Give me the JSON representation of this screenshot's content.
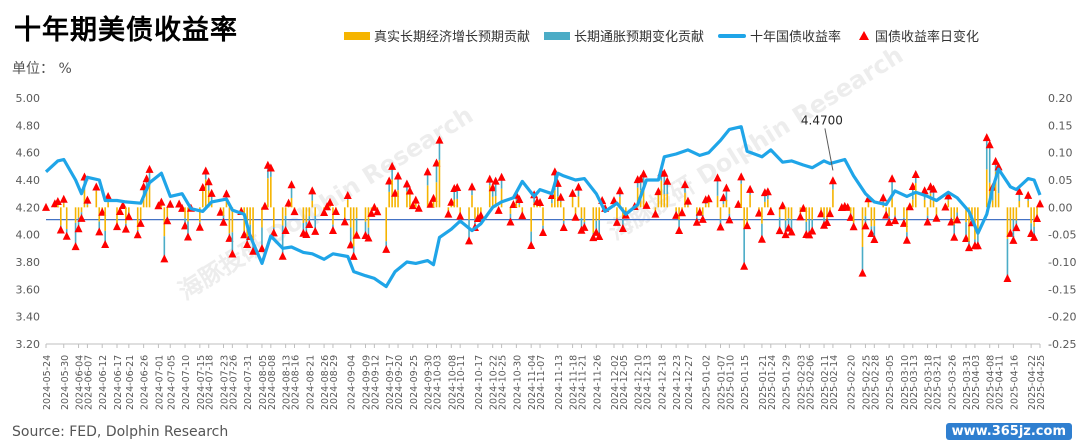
{
  "title": "十年期美债收益率",
  "unit": "单位： %",
  "source": "Source: FED, Dolphin Research",
  "stamp": "www.365jz.com",
  "watermark": "海豚投研 Dolphin Research",
  "colors": {
    "real": "#f5b400",
    "infl": "#4bacc6",
    "line": "#1fa5e8",
    "marker": "#ff0000",
    "ref": "#4472c4",
    "axis": "#595959"
  },
  "legend": {
    "real": "真实长期经济增长预期贡献",
    "infl": "长期通胀预期变化贡献",
    "line": "十年国债收益率",
    "marker": "国债收益率日变化"
  },
  "chart_data": {
    "type": "combo",
    "left_axis": {
      "min": 3.2,
      "max": 5.0,
      "ticks": [
        "3.20",
        "3.40",
        "3.60",
        "3.80",
        "4.00",
        "4.20",
        "4.40",
        "4.60",
        "4.80",
        "5.00"
      ]
    },
    "right_axis": {
      "min": -0.25,
      "max": 0.2,
      "ticks": [
        "-0.25",
        "-0.20",
        "-0.15",
        "-0.10",
        "-0.05",
        "0.00",
        "0.05",
        "0.10",
        "0.15",
        "0.20"
      ]
    },
    "x_ticks": [
      "2024-05-24",
      "2024-05-30",
      "2024-06-04",
      "2024-06-07",
      "2024-06-12",
      "2024-06-17",
      "2024-06-21",
      "2024-06-26",
      "2024-07-01",
      "2024-07-05",
      "2024-07-10",
      "2024-07-15",
      "2024-07-18",
      "2024-07-23",
      "2024-07-26",
      "2024-07-31",
      "2024-08-05",
      "2024-08-08",
      "2024-08-13",
      "2024-08-16",
      "2024-08-21",
      "2024-08-26",
      "2024-08-29",
      "2024-09-04",
      "2024-09-09",
      "2024-09-12",
      "2024-09-17",
      "2024-09-20",
      "2024-09-25",
      "2024-09-30",
      "2024-10-03",
      "2024-10-08",
      "2024-10-11",
      "2024-10-17",
      "2024-10-22",
      "2024-10-25",
      "2024-10-30",
      "2024-11-04",
      "2024-11-07",
      "2024-11-13",
      "2024-11-18",
      "2024-11-21",
      "2024-11-26",
      "2024-12-02",
      "2024-12-05",
      "2024-12-10",
      "2024-12-13",
      "2024-12-18",
      "2024-12-23",
      "2024-12-27",
      "2025-01-02",
      "2025-01-07",
      "2025-01-10",
      "2025-01-15",
      "2025-01-21",
      "2025-01-24",
      "2025-01-29",
      "2025-02-03",
      "2025-02-06",
      "2025-02-11",
      "2025-02-14",
      "2025-02-20",
      "2025-02-25",
      "2025-02-28",
      "2025-03-05",
      "2025-03-10",
      "2025-03-13",
      "2025-03-18",
      "2025-03-21",
      "2025-03-26",
      "2025-03-31",
      "2025-04-03",
      "2025-04-08",
      "2025-04-11",
      "2025-04-16",
      "2025-04-22",
      "2025-04-25"
    ],
    "annotation": {
      "label": "4.4700",
      "x": "2025-02-14",
      "y": 4.47
    },
    "yield_series": [
      [
        "2024-05-24",
        4.46
      ],
      [
        "2024-05-28",
        4.54
      ],
      [
        "2024-05-30",
        4.55
      ],
      [
        "2024-06-03",
        4.4
      ],
      [
        "2024-06-05",
        4.3
      ],
      [
        "2024-06-07",
        4.42
      ],
      [
        "2024-06-11",
        4.4
      ],
      [
        "2024-06-13",
        4.25
      ],
      [
        "2024-06-17",
        4.25
      ],
      [
        "2024-06-20",
        4.24
      ],
      [
        "2024-06-25",
        4.23
      ],
      [
        "2024-06-28",
        4.38
      ],
      [
        "2024-07-02",
        4.45
      ],
      [
        "2024-07-05",
        4.28
      ],
      [
        "2024-07-09",
        4.3
      ],
      [
        "2024-07-12",
        4.19
      ],
      [
        "2024-07-16",
        4.17
      ],
      [
        "2024-07-19",
        4.24
      ],
      [
        "2024-07-24",
        4.26
      ],
      [
        "2024-07-26",
        4.18
      ],
      [
        "2024-07-30",
        4.15
      ],
      [
        "2024-08-01",
        3.99
      ],
      [
        "2024-08-05",
        3.79
      ],
      [
        "2024-08-08",
        3.99
      ],
      [
        "2024-08-12",
        3.9
      ],
      [
        "2024-08-15",
        3.91
      ],
      [
        "2024-08-19",
        3.87
      ],
      [
        "2024-08-22",
        3.86
      ],
      [
        "2024-08-26",
        3.82
      ],
      [
        "2024-08-29",
        3.86
      ],
      [
        "2024-09-03",
        3.84
      ],
      [
        "2024-09-05",
        3.73
      ],
      [
        "2024-09-09",
        3.7
      ],
      [
        "2024-09-12",
        3.68
      ],
      [
        "2024-09-16",
        3.62
      ],
      [
        "2024-09-19",
        3.73
      ],
      [
        "2024-09-23",
        3.8
      ],
      [
        "2024-09-26",
        3.79
      ],
      [
        "2024-09-30",
        3.81
      ],
      [
        "2024-10-02",
        3.78
      ],
      [
        "2024-10-04",
        3.98
      ],
      [
        "2024-10-08",
        4.04
      ],
      [
        "2024-10-11",
        4.1
      ],
      [
        "2024-10-15",
        4.03
      ],
      [
        "2024-10-18",
        4.08
      ],
      [
        "2024-10-22",
        4.2
      ],
      [
        "2024-10-25",
        4.24
      ],
      [
        "2024-10-29",
        4.27
      ],
      [
        "2024-11-01",
        4.39
      ],
      [
        "2024-11-05",
        4.28
      ],
      [
        "2024-11-07",
        4.33
      ],
      [
        "2024-11-11",
        4.3
      ],
      [
        "2024-11-13",
        4.45
      ],
      [
        "2024-11-15",
        4.43
      ],
      [
        "2024-11-19",
        4.4
      ],
      [
        "2024-11-22",
        4.41
      ],
      [
        "2024-11-26",
        4.3
      ],
      [
        "2024-11-29",
        4.17
      ],
      [
        "2024-12-03",
        4.23
      ],
      [
        "2024-12-06",
        4.15
      ],
      [
        "2024-12-10",
        4.22
      ],
      [
        "2024-12-13",
        4.4
      ],
      [
        "2024-12-17",
        4.4
      ],
      [
        "2024-12-19",
        4.57
      ],
      [
        "2024-12-23",
        4.59
      ],
      [
        "2024-12-27",
        4.62
      ],
      [
        "2024-12-31",
        4.58
      ],
      [
        "2025-01-03",
        4.6
      ],
      [
        "2025-01-07",
        4.69
      ],
      [
        "2025-01-10",
        4.77
      ],
      [
        "2025-01-14",
        4.79
      ],
      [
        "2025-01-16",
        4.61
      ],
      [
        "2025-01-21",
        4.57
      ],
      [
        "2025-01-24",
        4.62
      ],
      [
        "2025-01-28",
        4.53
      ],
      [
        "2025-01-31",
        4.54
      ],
      [
        "2025-02-04",
        4.51
      ],
      [
        "2025-02-07",
        4.49
      ],
      [
        "2025-02-11",
        4.54
      ],
      [
        "2025-02-13",
        4.52
      ],
      [
        "2025-02-18",
        4.55
      ],
      [
        "2025-02-21",
        4.43
      ],
      [
        "2025-02-25",
        4.3
      ],
      [
        "2025-02-28",
        4.24
      ],
      [
        "2025-03-04",
        4.22
      ],
      [
        "2025-03-07",
        4.32
      ],
      [
        "2025-03-11",
        4.28
      ],
      [
        "2025-03-14",
        4.31
      ],
      [
        "2025-03-18",
        4.28
      ],
      [
        "2025-03-21",
        4.25
      ],
      [
        "2025-03-25",
        4.31
      ],
      [
        "2025-03-28",
        4.27
      ],
      [
        "2025-04-01",
        4.17
      ],
      [
        "2025-04-04",
        4.01
      ],
      [
        "2025-04-07",
        4.15
      ],
      [
        "2025-04-09",
        4.34
      ],
      [
        "2025-04-11",
        4.48
      ],
      [
        "2025-04-15",
        4.35
      ],
      [
        "2025-04-17",
        4.33
      ],
      [
        "2025-04-21",
        4.41
      ],
      [
        "2025-04-23",
        4.4
      ],
      [
        "2025-04-25",
        4.29
      ]
    ],
    "daily_change_note": "≈240 daily observations; bars and triangles share the right axis",
    "real_contrib_note": "yellow bars, right axis",
    "infl_contrib_note": "blue bars, right axis"
  }
}
